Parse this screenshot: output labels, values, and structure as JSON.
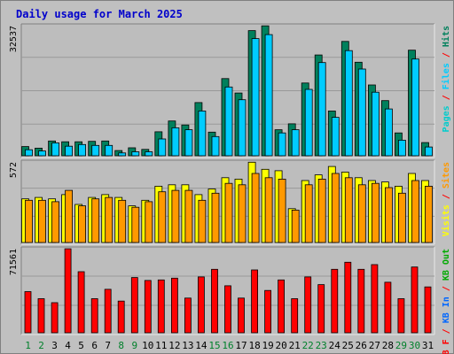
{
  "colors": {
    "background": "#c0c0c0",
    "frame_light": "#e8e8e8",
    "frame_dark": "#808080",
    "plot_bg": "#bdbdbd",
    "grid": "#999999",
    "title": "#0000cc",
    "weekend_label": "#00802b",
    "weekday_label": "#000000",
    "hits": "#00805c",
    "files": "#00ccff",
    "pages": "#00cccc",
    "visits": "#ffff00",
    "sites": "#ff9900",
    "kbf": "#ff0000",
    "kbin": "#0066ff",
    "kbout": "#00aa00"
  },
  "chart_data": {
    "type": "bar",
    "title": "Daily usage for March 2025",
    "categories": [
      "1",
      "2",
      "3",
      "4",
      "5",
      "6",
      "7",
      "8",
      "9",
      "10",
      "11",
      "12",
      "13",
      "14",
      "15",
      "16",
      "17",
      "18",
      "19",
      "20",
      "21",
      "22",
      "23",
      "24",
      "25",
      "26",
      "27",
      "28",
      "29",
      "30",
      "31"
    ],
    "weekend_days": [
      "1",
      "2",
      "8",
      "9",
      "15",
      "16",
      "22",
      "23",
      "29",
      "30"
    ],
    "panels": [
      {
        "ymax_label": "32537",
        "ymax": 32537,
        "legend": [
          {
            "label": "Pages",
            "color_key": "pages"
          },
          {
            "label": " / ",
            "color_key": "kbf"
          },
          {
            "label": "Files",
            "color_key": "files"
          },
          {
            "label": " / ",
            "color_key": "kbf"
          },
          {
            "label": "Hits",
            "color_key": "hits"
          }
        ],
        "series": [
          {
            "name": "Hits",
            "color_key": "hits",
            "values": [
              2300,
              1900,
              3700,
              3500,
              3500,
              3600,
              3700,
              1300,
              2000,
              1600,
              6000,
              8700,
              7700,
              13300,
              5900,
              19300,
              15700,
              31300,
              32500,
              6500,
              8000,
              18200,
              25200,
              11200,
              28600,
              23400,
              17700,
              13800,
              5700,
              26400,
              3300
            ]
          },
          {
            "name": "Files",
            "color_key": "files",
            "values": [
              1500,
              1200,
              3200,
              2400,
              2800,
              2600,
              2600,
              700,
              1000,
              1000,
              4200,
              7000,
              6500,
              11200,
              4800,
              17200,
              14000,
              29300,
              30300,
              5700,
              6500,
              16600,
              23300,
              9600,
              26300,
              21700,
              15900,
              11700,
              3900,
              24200,
              2200
            ]
          }
        ]
      },
      {
        "ymax_label": "572",
        "ymax": 572,
        "legend": [
          {
            "label": "Visits",
            "color_key": "visits"
          },
          {
            "label": " / ",
            "color_key": "kbf"
          },
          {
            "label": "Sites",
            "color_key": "sites"
          }
        ],
        "series": [
          {
            "name": "Visits",
            "color_key": "visits",
            "values": [
              310,
              320,
              310,
              340,
              270,
              320,
              340,
              320,
              260,
              300,
              400,
              410,
              410,
              340,
              380,
              460,
              450,
              570,
              520,
              510,
              240,
              440,
              480,
              540,
              500,
              460,
              440,
              430,
              400,
              490,
              440
            ]
          },
          {
            "name": "Sites",
            "color_key": "sites",
            "values": [
              300,
              300,
              290,
              370,
              260,
              310,
              320,
              300,
              250,
              290,
              360,
              370,
              370,
              300,
              350,
              420,
              410,
              490,
              460,
              450,
              230,
              410,
              450,
              490,
              460,
              410,
              420,
              390,
              350,
              440,
              400
            ]
          }
        ]
      },
      {
        "ymax_label": "71561",
        "ymax": 71561,
        "legend": [
          {
            "label": "KB F",
            "color_key": "kbf"
          },
          {
            "label": " / ",
            "color_key": "kbf"
          },
          {
            "label": "KB In",
            "color_key": "kbin"
          },
          {
            "label": " / ",
            "color_key": "kbf"
          },
          {
            "label": "KB Out",
            "color_key": "kbout"
          }
        ],
        "series": [
          {
            "name": "KB F",
            "color_key": "kbf",
            "values": [
              35000,
              29000,
              25600,
              71500,
              52000,
              29000,
              37000,
              27000,
              47000,
              44500,
              45000,
              46500,
              29500,
              47500,
              54000,
              40000,
              29500,
              53500,
              36000,
              45000,
              29000,
              47500,
              41000,
              54000,
              60000,
              54000,
              58000,
              43000,
              29000,
              56000,
              39000
            ]
          }
        ]
      }
    ]
  }
}
